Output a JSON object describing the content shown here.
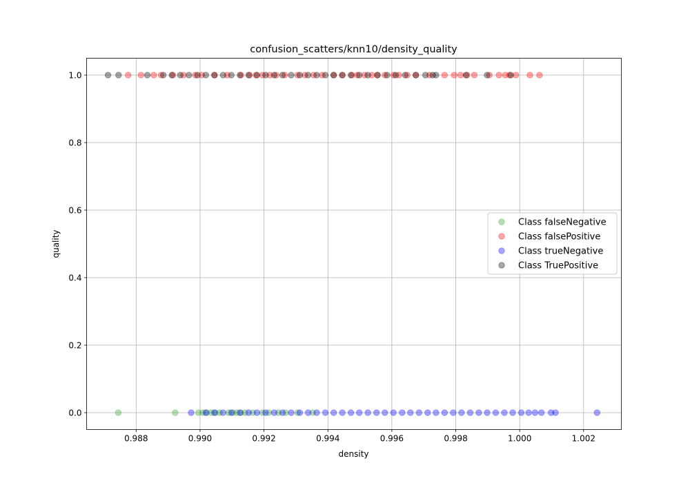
{
  "chart_data": {
    "type": "scatter",
    "title": "confusion_scatters/knn10/density_quality",
    "xlabel": "density",
    "ylabel": "quality",
    "xlim": [
      0.98645,
      1.00318
    ],
    "ylim": [
      -0.05,
      1.05
    ],
    "x_ticks": [
      0.988,
      0.99,
      0.992,
      0.994,
      0.996,
      0.998,
      1.0,
      1.002
    ],
    "x_tick_labels": [
      "0.988",
      "0.990",
      "0.992",
      "0.994",
      "0.996",
      "0.998",
      "1.000",
      "1.002"
    ],
    "y_ticks": [
      0.0,
      0.2,
      0.4,
      0.6,
      0.8,
      1.0
    ],
    "y_tick_labels": [
      "0.0",
      "0.2",
      "0.4",
      "0.6",
      "0.8",
      "1.0"
    ],
    "grid": true,
    "legend_position": "center-right",
    "series": [
      {
        "name": "Class falseNegative",
        "color": "#2ca02c",
        "y_value": 0,
        "x": [
          0.98744,
          0.98922,
          0.98995,
          0.99008,
          0.99021,
          0.99035,
          0.99048,
          0.99061,
          0.99089,
          0.99103,
          0.99115,
          0.99128,
          0.99141,
          0.99165,
          0.99195,
          0.99215,
          0.99245,
          0.99268,
          0.99305,
          0.99352
        ]
      },
      {
        "name": "Class falsePositive",
        "color": "#ff0000",
        "y_value": 1,
        "x": [
          0.98775,
          0.98815,
          0.98855,
          0.98878,
          0.98915,
          0.98948,
          0.98985,
          0.99005,
          0.99045,
          0.99085,
          0.99128,
          0.99155,
          0.99175,
          0.99195,
          0.99218,
          0.99238,
          0.99265,
          0.99305,
          0.99328,
          0.99355,
          0.99382,
          0.99418,
          0.99445,
          0.99475,
          0.99492,
          0.99515,
          0.99538,
          0.99555,
          0.99578,
          0.99605,
          0.99622,
          0.99648,
          0.99675,
          0.99718,
          0.99765,
          0.99795,
          0.99815,
          0.99835,
          0.99858,
          0.99905,
          0.99935,
          0.99955,
          0.99968,
          0.99988,
          1.00032,
          1.00062
        ]
      },
      {
        "name": "Class trueNegative",
        "color": "#0000ff",
        "y_value": 0,
        "x": [
          0.98972,
          0.99018,
          0.99045,
          0.99072,
          0.99098,
          0.99125,
          0.99152,
          0.99178,
          0.99205,
          0.99232,
          0.99258,
          0.99285,
          0.99312,
          0.99338,
          0.99365,
          0.99392,
          0.99418,
          0.99445,
          0.99472,
          0.99498,
          0.99525,
          0.99552,
          0.99578,
          0.99605,
          0.99632,
          0.99658,
          0.99685,
          0.99712,
          0.99738,
          0.99765,
          0.99792,
          0.99818,
          0.99845,
          0.99872,
          0.99898,
          0.99925,
          0.99952,
          0.99978,
          1.00005,
          1.00028,
          1.00048,
          1.00068,
          1.00098,
          1.00112,
          1.00242
        ]
      },
      {
        "name": "Class TruePositive",
        "color": "#000000",
        "y_value": 1,
        "x": [
          0.98712,
          0.98745,
          0.98835,
          0.98885,
          0.98912,
          0.98938,
          0.98965,
          0.98992,
          0.99018,
          0.99045,
          0.99072,
          0.99098,
          0.99125,
          0.99152,
          0.99178,
          0.99205,
          0.99232,
          0.99258,
          0.99285,
          0.99312,
          0.99338,
          0.99365,
          0.99392,
          0.99418,
          0.99445,
          0.99472,
          0.99498,
          0.99525,
          0.99555,
          0.99585,
          0.99612,
          0.99642,
          0.99675,
          0.99705,
          0.99728,
          0.99738,
          0.99832,
          0.99898,
          0.99972
        ]
      }
    ]
  }
}
